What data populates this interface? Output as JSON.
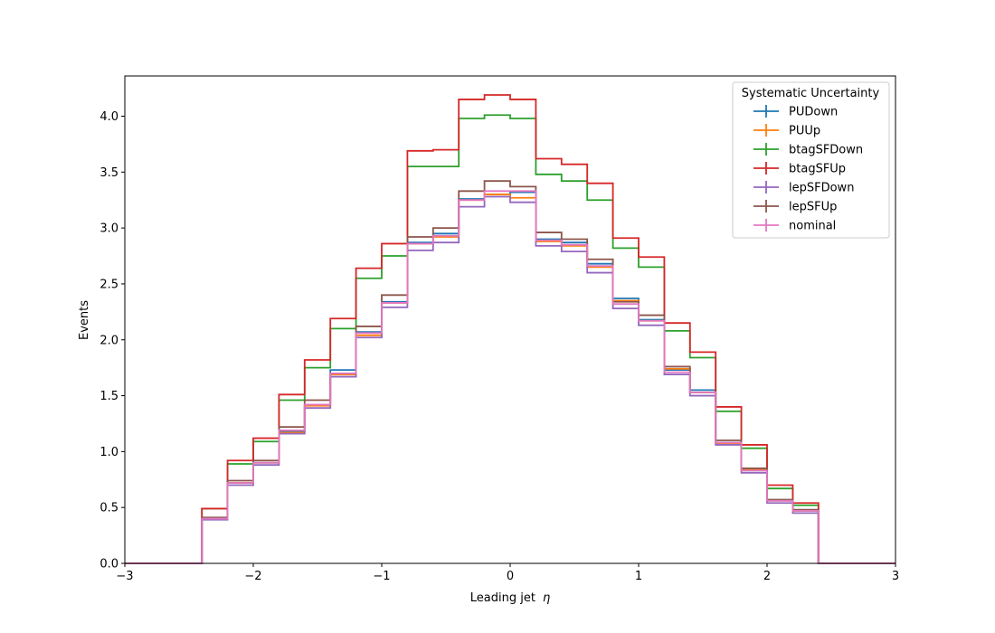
{
  "chart_data": {
    "type": "step-histogram",
    "title": "",
    "xlabel": "Leading jet",
    "xlabel_symbol": "η",
    "ylabel": "Events",
    "xlim": [
      -3,
      3
    ],
    "ylim": [
      0,
      4.36
    ],
    "xticks": [
      -3,
      -2,
      -1,
      0,
      1,
      2,
      3
    ],
    "xtick_labels": [
      "−3",
      "−2",
      "−1",
      "0",
      "1",
      "2",
      "3"
    ],
    "yticks": [
      0,
      0.5,
      1,
      1.5,
      2,
      2.5,
      3,
      3.5,
      4
    ],
    "ytick_labels": [
      "0.0",
      "0.5",
      "1.0",
      "1.5",
      "2.0",
      "2.5",
      "3.0",
      "3.5",
      "4.0"
    ],
    "grid": false,
    "legend": {
      "title": "Systematic Uncertainty",
      "placement": "top-right"
    },
    "bin_edges": [
      -3.0,
      -2.8,
      -2.6,
      -2.4,
      -2.2,
      -2.0,
      -1.8,
      -1.6,
      -1.4,
      -1.2,
      -1.0,
      -0.8,
      -0.6,
      -0.4,
      -0.2,
      0.0,
      0.2,
      0.4,
      0.6,
      0.8,
      1.0,
      1.2,
      1.4,
      1.6,
      1.8,
      2.0,
      2.2,
      2.4,
      2.6,
      2.8,
      3.0
    ],
    "series": [
      {
        "name": "PUDown",
        "color": "#1f77b4",
        "values": [
          0,
          0,
          0,
          0.4,
          0.72,
          0.9,
          1.18,
          1.42,
          1.73,
          2.07,
          2.34,
          2.87,
          2.95,
          3.26,
          3.3,
          3.32,
          2.9,
          2.87,
          2.68,
          2.37,
          2.18,
          1.73,
          1.55,
          1.08,
          0.83,
          0.56,
          0.47,
          0,
          0,
          0
        ]
      },
      {
        "name": "PUUp",
        "color": "#ff7f0e",
        "values": [
          0,
          0,
          0,
          0.4,
          0.72,
          0.9,
          1.17,
          1.41,
          1.69,
          2.04,
          2.33,
          2.86,
          2.92,
          3.25,
          3.3,
          3.27,
          2.88,
          2.84,
          2.65,
          2.35,
          2.17,
          1.74,
          1.53,
          1.07,
          0.84,
          0.56,
          0.47,
          0,
          0,
          0
        ]
      },
      {
        "name": "btagSFDown",
        "color": "#2ca02c",
        "values": [
          0,
          0,
          0,
          0.49,
          0.89,
          1.09,
          1.46,
          1.75,
          2.1,
          2.55,
          2.75,
          3.55,
          3.55,
          3.98,
          4.01,
          3.98,
          3.48,
          3.42,
          3.25,
          2.82,
          2.65,
          2.08,
          1.84,
          1.36,
          1.03,
          0.67,
          0.52,
          0,
          0,
          0
        ]
      },
      {
        "name": "btagSFUp",
        "color": "#d62728",
        "values": [
          0,
          0,
          0,
          0.49,
          0.92,
          1.12,
          1.51,
          1.82,
          2.19,
          2.64,
          2.86,
          3.69,
          3.7,
          4.15,
          4.19,
          4.15,
          3.62,
          3.57,
          3.4,
          2.91,
          2.74,
          2.15,
          1.89,
          1.4,
          1.06,
          0.7,
          0.54,
          0,
          0,
          0
        ]
      },
      {
        "name": "lepSFDown",
        "color": "#9467bd",
        "values": [
          0,
          0,
          0,
          0.39,
          0.7,
          0.88,
          1.16,
          1.39,
          1.67,
          2.02,
          2.29,
          2.8,
          2.87,
          3.19,
          3.28,
          3.23,
          2.84,
          2.79,
          2.6,
          2.28,
          2.13,
          1.69,
          1.5,
          1.06,
          0.81,
          0.54,
          0.45,
          0,
          0,
          0
        ]
      },
      {
        "name": "lepSFUp",
        "color": "#8c564b",
        "values": [
          0,
          0,
          0,
          0.41,
          0.74,
          0.92,
          1.22,
          1.46,
          1.7,
          2.12,
          2.4,
          2.92,
          3.0,
          3.33,
          3.42,
          3.37,
          2.96,
          2.9,
          2.72,
          2.34,
          2.22,
          1.76,
          1.53,
          1.1,
          0.85,
          0.57,
          0.48,
          0,
          0,
          0
        ]
      },
      {
        "name": "nominal",
        "color": "#e377c2",
        "values": [
          0,
          0,
          0,
          0.4,
          0.72,
          0.9,
          1.19,
          1.42,
          1.7,
          2.06,
          2.33,
          2.86,
          2.93,
          3.25,
          3.33,
          3.33,
          2.89,
          2.85,
          2.66,
          2.32,
          2.17,
          1.71,
          1.53,
          1.08,
          0.83,
          0.56,
          0.47,
          0,
          0,
          0
        ]
      }
    ]
  }
}
